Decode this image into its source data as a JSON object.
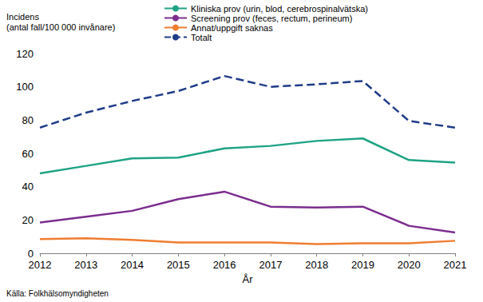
{
  "chart_data": {
    "type": "line",
    "ylabel": "Incidens\n(antal fall/100 000 invånare)",
    "xlabel": "År",
    "annotations": [
      "Källa: Folkhälsomyndigheten"
    ],
    "x": [
      2012,
      2013,
      2014,
      2015,
      2016,
      2017,
      2018,
      2019,
      2020,
      2021
    ],
    "xlim": [
      2012,
      2021
    ],
    "xticks": [
      2012,
      2013,
      2014,
      2015,
      2016,
      2017,
      2018,
      2019,
      2020,
      2021
    ],
    "ylim": [
      0,
      120
    ],
    "yticks": [
      0,
      20,
      40,
      60,
      80,
      100,
      120
    ],
    "grid": false,
    "legend": "top",
    "series": [
      {
        "name": "Kliniska prov (urin, blod, cerebrospinalvätska)",
        "color": "#1fa384",
        "marker": "none",
        "line_style": "solid",
        "values": [
          48,
          52.5,
          57,
          57.5,
          63,
          64.5,
          67.5,
          69,
          56,
          54.5
        ]
      },
      {
        "name": "Screening prov (feces, rectum, perineum)",
        "color": "#7b2d8e",
        "marker": "none",
        "line_style": "solid",
        "values": [
          18.5,
          22,
          25.5,
          32.5,
          37,
          28,
          27.5,
          28,
          16.5,
          12.5
        ]
      },
      {
        "name": "Annat/uppgift saknas",
        "color": "#f07d32",
        "marker": "none",
        "line_style": "solid",
        "values": [
          8.5,
          9,
          8,
          6.5,
          6.5,
          6.5,
          5.5,
          6,
          6,
          7.5
        ]
      },
      {
        "name": "Totalt",
        "color": "#1f3c88",
        "marker": "none",
        "line_style": "dashed",
        "values": [
          75.5,
          84.5,
          91.5,
          97.5,
          106.5,
          100,
          101.5,
          103.5,
          79.5,
          75.5
        ]
      }
    ]
  }
}
